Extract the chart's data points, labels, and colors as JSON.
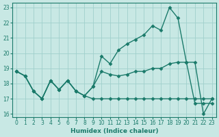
{
  "xlabel": "Humidex (Indice chaleur)",
  "ylabel": "",
  "xlim": [
    -0.5,
    23.5
  ],
  "ylim": [
    15.8,
    23.3
  ],
  "yticks": [
    16,
    17,
    18,
    19,
    20,
    21,
    22,
    23
  ],
  "xticks": [
    0,
    1,
    2,
    3,
    4,
    5,
    6,
    7,
    8,
    9,
    10,
    11,
    12,
    13,
    14,
    15,
    16,
    17,
    18,
    19,
    20,
    21,
    22,
    23
  ],
  "bg_color": "#c8e8e4",
  "grid_color": "#a0d0cc",
  "line_color": "#1a7a6a",
  "series1": [
    18.8,
    18.5,
    17.5,
    17.0,
    18.2,
    17.6,
    18.2,
    17.5,
    17.2,
    17.8,
    19.8,
    19.3,
    20.2,
    20.6,
    20.9,
    21.2,
    21.8,
    21.5,
    23.0,
    22.3,
    19.4,
    19.4,
    16.0,
    17.0
  ],
  "series2": [
    18.8,
    18.5,
    17.5,
    17.0,
    18.2,
    17.6,
    18.2,
    17.5,
    17.2,
    17.8,
    18.8,
    18.6,
    18.5,
    18.6,
    18.8,
    18.8,
    19.0,
    19.0,
    19.3,
    19.4,
    19.4,
    16.7,
    16.7,
    16.7
  ],
  "series3": [
    18.8,
    18.5,
    17.5,
    17.0,
    18.2,
    17.6,
    18.2,
    17.5,
    17.2,
    17.0,
    17.0,
    17.0,
    17.0,
    17.0,
    17.0,
    17.0,
    17.0,
    17.0,
    17.0,
    17.0,
    17.0,
    17.0,
    17.0,
    17.0
  ],
  "marker": "D",
  "markersize": 2.5,
  "linewidth": 1.0
}
